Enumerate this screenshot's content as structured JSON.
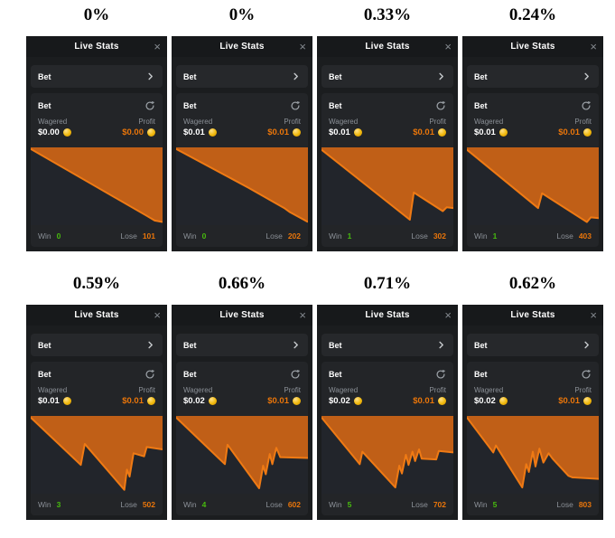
{
  "strings": {
    "title": "Live Stats",
    "close_icon": "×",
    "bet": "Bet",
    "wagered_label": "Wagered",
    "profit_label": "Profit",
    "win_label": "Win",
    "lose_label": "Lose"
  },
  "colors": {
    "page_bg": "#ffffff",
    "panel_bg": "#1b1d1f",
    "header_bg": "#17191b",
    "row_bg": "#26282b",
    "card_bg": "#232528",
    "chart_bg": "#22252b",
    "chart_fill": "#c05f17",
    "chart_stroke": "#ef7a14",
    "muted_text": "#8b9097",
    "profit_orange": "#e9750a",
    "win_green": "#47bb0e",
    "coin_gold": "#f0b90b"
  },
  "icons": [
    "close-icon",
    "chevron-right-icon",
    "refresh-icon",
    "coin-icon"
  ],
  "panels": [
    {
      "percent": "0%",
      "wagered": "$0.00",
      "profit": "$0.00",
      "win": "0",
      "lose": "101",
      "chart": {
        "type": "area",
        "baseline": "top",
        "x_range": [
          0,
          100
        ],
        "y_range": [
          0,
          100
        ],
        "points": [
          [
            0,
            2
          ],
          [
            45,
            46
          ],
          [
            88,
            88
          ],
          [
            94,
            94
          ],
          [
            100,
            96
          ]
        ]
      }
    },
    {
      "percent": "0%",
      "wagered": "$0.01",
      "profit": "$0.01",
      "win": "0",
      "lose": "202",
      "chart": {
        "type": "area",
        "baseline": "top",
        "x_range": [
          0,
          100
        ],
        "y_range": [
          0,
          100
        ],
        "points": [
          [
            0,
            2
          ],
          [
            55,
            52
          ],
          [
            82,
            78
          ],
          [
            86,
            83
          ],
          [
            100,
            96
          ]
        ]
      }
    },
    {
      "percent": "0.33%",
      "wagered": "$0.01",
      "profit": "$0.01",
      "win": "1",
      "lose": "302",
      "chart": {
        "type": "area",
        "baseline": "top",
        "x_range": [
          0,
          100
        ],
        "y_range": [
          0,
          100
        ],
        "points": [
          [
            0,
            3
          ],
          [
            67,
            93
          ],
          [
            70,
            58
          ],
          [
            92,
            82
          ],
          [
            95,
            77
          ],
          [
            100,
            78
          ]
        ]
      }
    },
    {
      "percent": "0.24%",
      "wagered": "$0.01",
      "profit": "$0.01",
      "win": "1",
      "lose": "403",
      "chart": {
        "type": "area",
        "baseline": "top",
        "x_range": [
          0,
          100
        ],
        "y_range": [
          0,
          100
        ],
        "points": [
          [
            0,
            3
          ],
          [
            54,
            78
          ],
          [
            57,
            59
          ],
          [
            91,
            96
          ],
          [
            94,
            90
          ],
          [
            100,
            91
          ]
        ]
      }
    },
    {
      "percent": "0.59%",
      "wagered": "$0.01",
      "profit": "$0.01",
      "win": "3",
      "lose": "502",
      "chart": {
        "type": "area",
        "baseline": "top",
        "x_range": [
          0,
          100
        ],
        "y_range": [
          0,
          100
        ],
        "points": [
          [
            0,
            2
          ],
          [
            38,
            63
          ],
          [
            41,
            36
          ],
          [
            71,
            95
          ],
          [
            73,
            69
          ],
          [
            75,
            78
          ],
          [
            78,
            48
          ],
          [
            86,
            52
          ],
          [
            88,
            40
          ],
          [
            100,
            43
          ]
        ]
      }
    },
    {
      "percent": "0.66%",
      "wagered": "$0.02",
      "profit": "$0.01",
      "win": "4",
      "lose": "602",
      "chart": {
        "type": "area",
        "baseline": "top",
        "x_range": [
          0,
          100
        ],
        "y_range": [
          0,
          100
        ],
        "points": [
          [
            0,
            2
          ],
          [
            37,
            62
          ],
          [
            39,
            37
          ],
          [
            63,
            93
          ],
          [
            66,
            64
          ],
          [
            68,
            75
          ],
          [
            71,
            49
          ],
          [
            73,
            62
          ],
          [
            76,
            41
          ],
          [
            79,
            53
          ],
          [
            100,
            54
          ]
        ]
      }
    },
    {
      "percent": "0.71%",
      "wagered": "$0.02",
      "profit": "$0.01",
      "win": "5",
      "lose": "702",
      "chart": {
        "type": "area",
        "baseline": "top",
        "x_range": [
          0,
          100
        ],
        "y_range": [
          0,
          100
        ],
        "points": [
          [
            0,
            2
          ],
          [
            29,
            62
          ],
          [
            31,
            46
          ],
          [
            56,
            92
          ],
          [
            59,
            64
          ],
          [
            61,
            74
          ],
          [
            64,
            50
          ],
          [
            66,
            63
          ],
          [
            69,
            46
          ],
          [
            71,
            58
          ],
          [
            74,
            43
          ],
          [
            76,
            55
          ],
          [
            87,
            56
          ],
          [
            89,
            45
          ],
          [
            100,
            47
          ]
        ]
      }
    },
    {
      "percent": "0.62%",
      "wagered": "$0.02",
      "profit": "$0.01",
      "win": "5",
      "lose": "803",
      "chart": {
        "type": "area",
        "baseline": "top",
        "x_range": [
          0,
          100
        ],
        "y_range": [
          0,
          100
        ],
        "points": [
          [
            0,
            2
          ],
          [
            20,
            47
          ],
          [
            22,
            38
          ],
          [
            42,
            92
          ],
          [
            45,
            62
          ],
          [
            47,
            72
          ],
          [
            50,
            46
          ],
          [
            52,
            65
          ],
          [
            55,
            42
          ],
          [
            58,
            60
          ],
          [
            62,
            48
          ],
          [
            65,
            55
          ],
          [
            77,
            77
          ],
          [
            80,
            79
          ],
          [
            100,
            81
          ]
        ]
      }
    }
  ]
}
